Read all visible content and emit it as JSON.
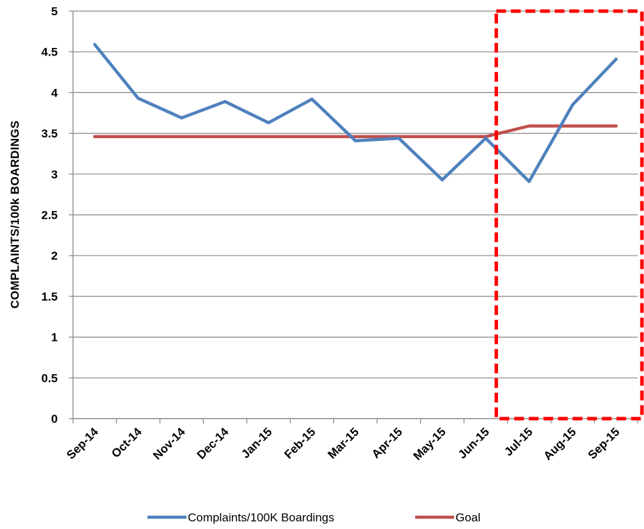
{
  "chart_data": {
    "type": "line",
    "title": "",
    "xlabel": "",
    "ylabel": "COMPLAINTS/100k BOARDINGS",
    "categories": [
      "Sep-14",
      "Oct-14",
      "Nov-14",
      "Dec-14",
      "Jan-15",
      "Feb-15",
      "Mar-15",
      "Apr-15",
      "May-15",
      "Jun-15",
      "Jul-15",
      "Aug-15",
      "Sep-15"
    ],
    "ylim": [
      0,
      5
    ],
    "yticks": [
      "0",
      "0.5",
      "1",
      "1.5",
      "2",
      "2.5",
      "3",
      "3.5",
      "4",
      "4.5",
      "5"
    ],
    "grid": "horizontal",
    "legend_position": "bottom",
    "series": [
      {
        "name": "Complaints/100K Boardings",
        "color": "#4F81BD",
        "values": [
          4.59,
          3.93,
          3.69,
          3.89,
          3.63,
          3.92,
          3.41,
          3.44,
          2.93,
          3.44,
          2.91,
          3.85,
          4.41
        ]
      },
      {
        "name": "Goal",
        "color": "#C0504D",
        "values": [
          3.46,
          3.46,
          3.46,
          3.46,
          3.46,
          3.46,
          3.46,
          3.46,
          3.46,
          3.46,
          3.59,
          3.59,
          3.59
        ]
      }
    ],
    "annotations": [
      {
        "type": "dashed-box",
        "color": "#FF0000",
        "from_category": "Jul-15",
        "to_category": "Sep-15"
      }
    ]
  }
}
